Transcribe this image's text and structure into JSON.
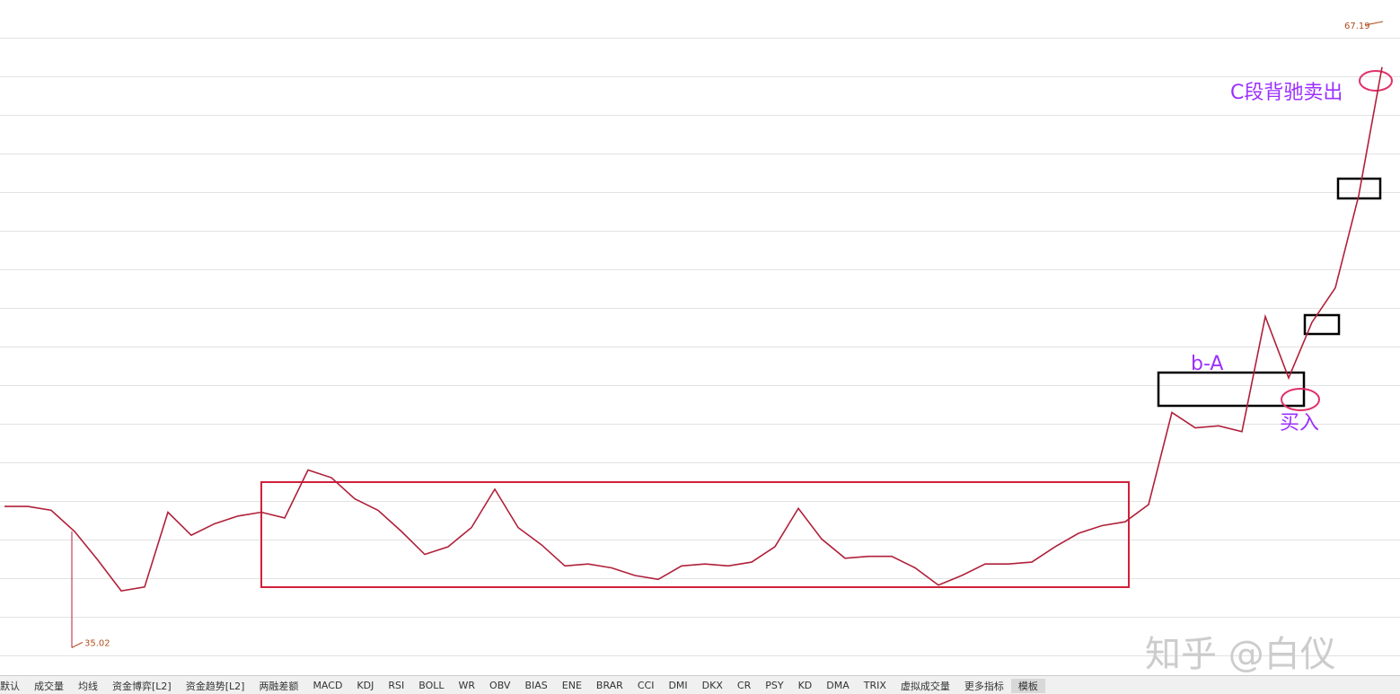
{
  "chart_data": {
    "type": "line",
    "values": [
      42.1,
      42.1,
      41.9,
      40.8,
      39.3,
      37.7,
      37.9,
      41.8,
      40.6,
      41.2,
      41.6,
      41.8,
      41.5,
      44.0,
      43.6,
      42.5,
      41.9,
      40.8,
      39.6,
      40.0,
      41.0,
      43.0,
      41.0,
      40.1,
      39.0,
      39.1,
      38.9,
      38.5,
      38.3,
      39.0,
      39.1,
      39.0,
      39.2,
      40.0,
      42.0,
      40.4,
      39.4,
      39.5,
      39.5,
      38.9,
      38.0,
      38.5,
      39.1,
      39.1,
      39.2,
      40.0,
      40.7,
      41.1,
      41.3,
      42.2,
      47.0,
      46.2,
      46.3,
      46.0,
      52.0,
      48.8,
      51.7,
      53.5,
      58.3,
      65.0
    ],
    "color": "#b0203a",
    "ylim": [
      33.4,
      68.5
    ],
    "high": 67.19,
    "low": 35.02,
    "annotations": [
      "C段背驰卖出",
      "b-A",
      "买入"
    ],
    "tabs": [
      "默认",
      "成交量",
      "均线",
      "资金博弈[L2]",
      "资金趋势[L2]",
      "两融差额",
      "MACD",
      "KDJ",
      "RSI",
      "BOLL",
      "WR",
      "OBV",
      "BIAS",
      "ENE",
      "BRAR",
      "CCI",
      "DMI",
      "DKX",
      "CR",
      "PSY",
      "KD",
      "DMA",
      "TRIX",
      "虚拟成交量",
      "更多指标",
      "模板"
    ],
    "watermark": "知乎 @白仪"
  }
}
